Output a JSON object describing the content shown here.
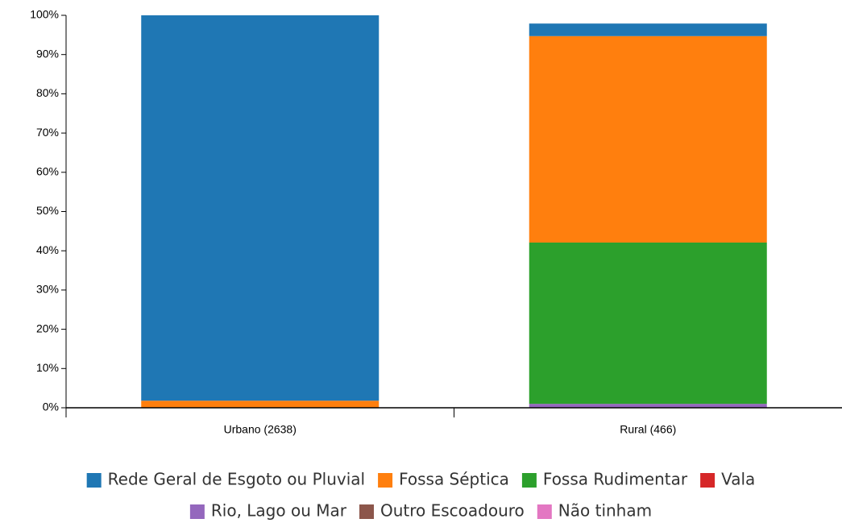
{
  "chart_data": {
    "type": "stacked_bar",
    "categories": [
      "Urbano (2638)",
      "Rural (466)"
    ],
    "series": [
      {
        "name": "Rede Geral de Esgoto ou Pluvial",
        "color": "#1f77b4",
        "values": [
          98.2,
          3.2
        ]
      },
      {
        "name": "Fossa Séptica",
        "color": "#ff7f0e",
        "values": [
          1.8,
          52.6
        ]
      },
      {
        "name": "Fossa Rudimentar",
        "color": "#2ca02c",
        "values": [
          0,
          41.1
        ]
      },
      {
        "name": "Vala",
        "color": "#d62728",
        "values": [
          0,
          0
        ]
      },
      {
        "name": "Rio, Lago ou Mar",
        "color": "#9467bd",
        "values": [
          0,
          1
        ]
      },
      {
        "name": "Outro Escoadouro",
        "color": "#8c564b",
        "values": [
          0,
          0
        ]
      },
      {
        "name": "Não tinham",
        "color": "#e377c2",
        "values": [
          0,
          0
        ]
      }
    ],
    "ylim": [
      0,
      100
    ],
    "yticks": [
      {
        "value": 0,
        "label": "0%"
      },
      {
        "value": 10,
        "label": "10%"
      },
      {
        "value": 20,
        "label": "20%"
      },
      {
        "value": 30,
        "label": "30%"
      },
      {
        "value": 40,
        "label": "40%"
      },
      {
        "value": 50,
        "label": "50%"
      },
      {
        "value": 60,
        "label": "60%"
      },
      {
        "value": 70,
        "label": "70%"
      },
      {
        "value": 80,
        "label": "80%"
      },
      {
        "value": 90,
        "label": "90%"
      },
      {
        "value": 100,
        "label": "100%"
      }
    ],
    "legend": "bottom"
  }
}
